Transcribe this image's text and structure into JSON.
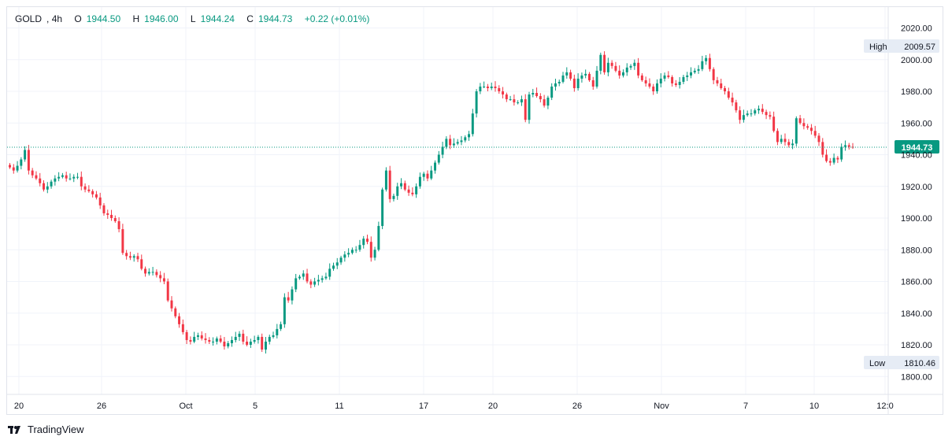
{
  "legend": {
    "symbol": "GOLD",
    "interval": "4h",
    "open_label": "O",
    "open": "1944.50",
    "high_label": "H",
    "high": "1946.00",
    "low_label": "L",
    "low": "1944.24",
    "close_label": "C",
    "close": "1944.73",
    "change": "+0.22 (+0.01%)"
  },
  "markers": {
    "high_label": "High",
    "high_value": "2009.57",
    "low_label": "Low",
    "low_value": "1810.46",
    "last_price": "1944.73"
  },
  "branding": {
    "name": "TradingView"
  },
  "colors": {
    "up": "#089981",
    "down": "#f23645",
    "grid": "#f0f3fa",
    "axis_text": "#131722"
  },
  "chart_data": {
    "type": "candlestick",
    "title": "",
    "interval": "4h",
    "ylim": [
      1793,
      2027
    ],
    "y_ticks": [
      "2020.00",
      "2000.00",
      "1980.00",
      "1960.00",
      "1940.00",
      "1920.00",
      "1900.00",
      "1880.00",
      "1860.00",
      "1840.00",
      "1820.00",
      "1800.00"
    ],
    "x_ticks": [
      "20",
      "26",
      "Oct",
      "5",
      "11",
      "17",
      "20",
      "26",
      "Nov",
      "7",
      "10",
      "12:0"
    ],
    "last_price": 1944.73,
    "high": 2009.57,
    "low": 1810.46,
    "closes": [
      1932,
      1930,
      1933,
      1937,
      1943,
      1930,
      1927,
      1925,
      1922,
      1918,
      1920,
      1923,
      1925,
      1926,
      1927,
      1925,
      1925,
      1926,
      1926,
      1920,
      1918,
      1917,
      1915,
      1913,
      1908,
      1903,
      1902,
      1900,
      1898,
      1893,
      1878,
      1876,
      1875,
      1876,
      1874,
      1868,
      1865,
      1866,
      1866,
      1864,
      1862,
      1860,
      1848,
      1843,
      1838,
      1833,
      1828,
      1823,
      1822,
      1825,
      1826,
      1824,
      1823,
      1822,
      1822,
      1824,
      1822,
      1819,
      1821,
      1823,
      1825,
      1827,
      1822,
      1820,
      1822,
      1823,
      1825,
      1817,
      1822,
      1825,
      1826,
      1830,
      1833,
      1850,
      1848,
      1855,
      1862,
      1863,
      1865,
      1860,
      1858,
      1860,
      1861,
      1862,
      1863,
      1868,
      1870,
      1872,
      1875,
      1877,
      1878,
      1880,
      1880,
      1883,
      1887,
      1885,
      1875,
      1880,
      1895,
      1918,
      1930,
      1912,
      1914,
      1920,
      1922,
      1918,
      1916,
      1915,
      1920,
      1926,
      1928,
      1925,
      1930,
      1935,
      1940,
      1945,
      1950,
      1946,
      1947,
      1948,
      1949,
      1951,
      1953,
      1966,
      1980,
      1983,
      1983,
      1982,
      1983,
      1982,
      1980,
      1978,
      1975,
      1975,
      1973,
      1973,
      1975,
      1962,
      1978,
      1979,
      1977,
      1975,
      1971,
      1976,
      1983,
      1985,
      1986,
      1990,
      1992,
      1988,
      1982,
      1988,
      1990,
      1991,
      1987,
      1983,
      1993,
      2003,
      1992,
      1998,
      1996,
      1993,
      1990,
      1992,
      1995,
      1996,
      1998,
      1990,
      1987,
      1985,
      1983,
      1980,
      1985,
      1988,
      1990,
      1989,
      1985,
      1984,
      1986,
      1989,
      1990,
      1992,
      1993,
      1994,
      1999,
      2001,
      1994,
      1987,
      1985,
      1982,
      1980,
      1976,
      1973,
      1968,
      1962,
      1965,
      1966,
      1966,
      1968,
      1969,
      1967,
      1965,
      1964,
      1955,
      1948,
      1950,
      1948,
      1946,
      1947,
      1963,
      1960,
      1958,
      1957,
      1955,
      1952,
      1948,
      1940,
      1936,
      1935,
      1938,
      1937,
      1945,
      1946,
      1945,
      1944.73
    ]
  }
}
